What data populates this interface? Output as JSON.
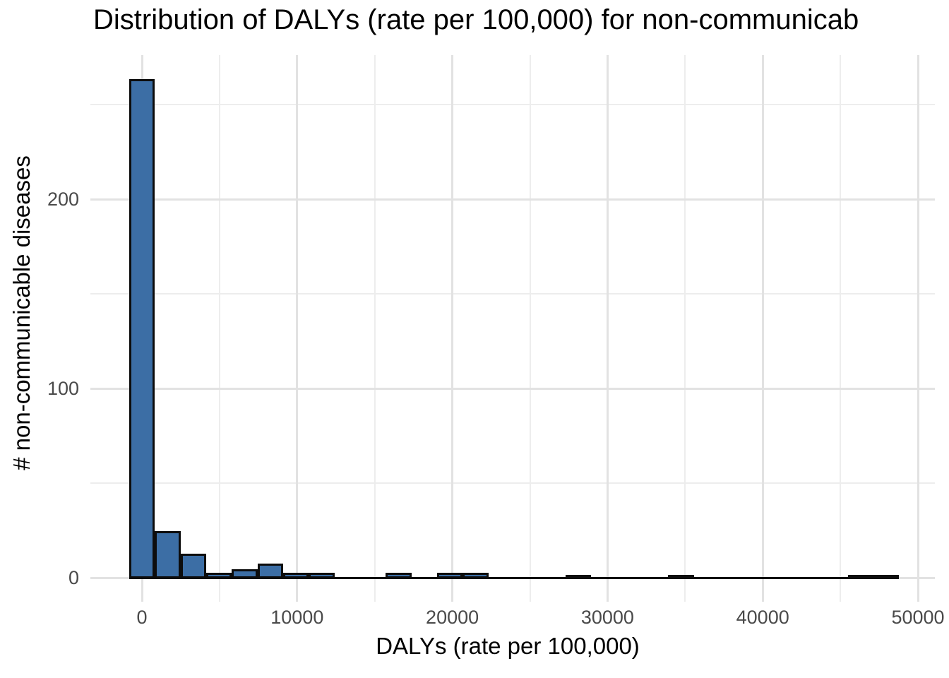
{
  "chart_data": {
    "type": "histogram",
    "title": "Distribution of DALYs (rate per 100,000) for non-communicab",
    "xlabel": "DALYs (rate per 100,000)",
    "ylabel": "# non-communicable diseases",
    "bin_start": -827,
    "bin_width": 1654,
    "bin_counts": [
      263,
      24,
      12,
      2,
      4,
      7,
      2,
      2,
      0,
      0,
      2,
      0,
      2,
      2,
      0,
      0,
      0,
      1,
      0,
      0,
      0,
      1,
      0,
      0,
      0,
      0,
      0,
      0,
      1,
      1
    ],
    "x_ticks": [
      {
        "value": 0,
        "label": "0"
      },
      {
        "value": 10000,
        "label": "10000"
      },
      {
        "value": 20000,
        "label": "20000"
      },
      {
        "value": 30000,
        "label": "30000"
      },
      {
        "value": 40000,
        "label": "40000"
      },
      {
        "value": 50000,
        "label": "50000"
      }
    ],
    "y_ticks": [
      {
        "value": 0,
        "label": "0"
      },
      {
        "value": 100,
        "label": "100"
      },
      {
        "value": 200,
        "label": "200"
      }
    ],
    "x_minor_ticks": [
      5000,
      15000,
      25000,
      35000,
      45000
    ],
    "y_minor_ticks": [
      50,
      150,
      250
    ],
    "xlim": [
      -3320,
      52000
    ],
    "ylim": [
      -13,
      276
    ],
    "grid": "major-and-minor",
    "legend": false,
    "style": {
      "bar_fill": "#3C6EA5",
      "bar_stroke": "#0d0d0d",
      "grid_major_color": "#e2e2e2",
      "grid_minor_color": "#ededed",
      "tick_label_color": "#4a4a4a",
      "text_color": "#000000",
      "background": "#ffffff"
    }
  }
}
